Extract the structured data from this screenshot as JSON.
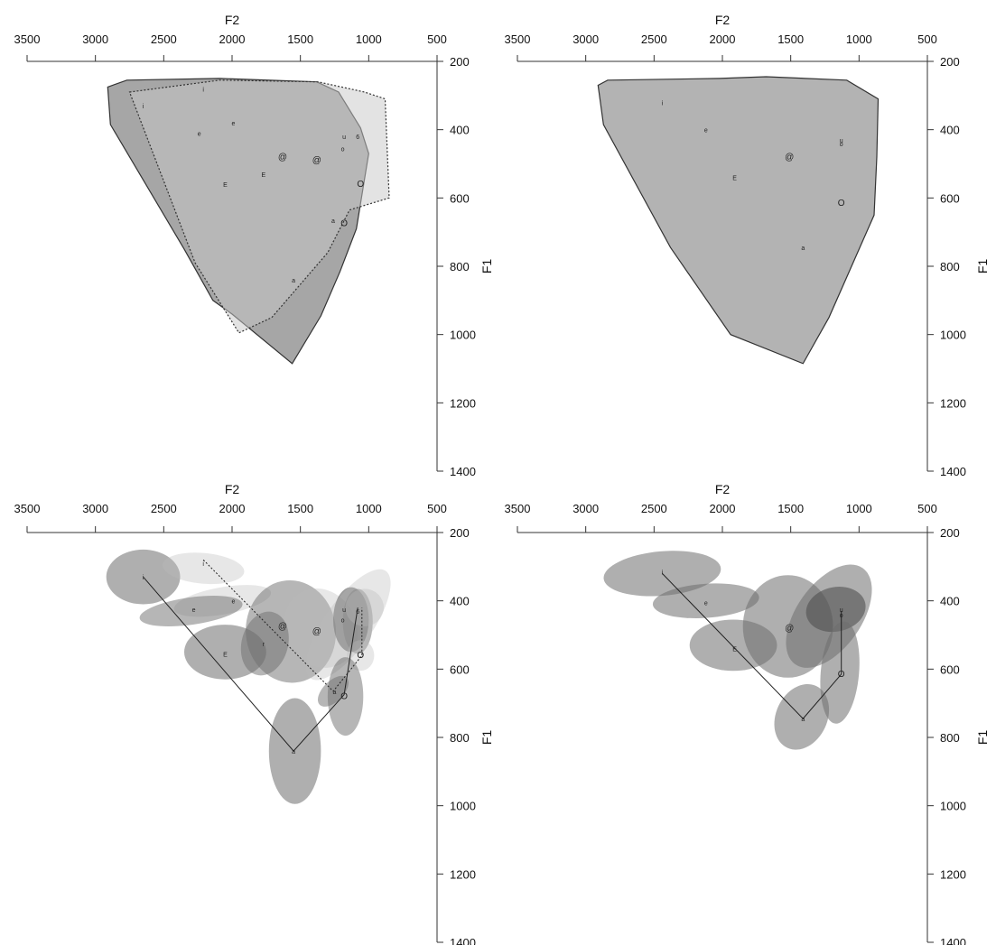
{
  "chart_data": [
    {
      "type": "scatter",
      "xlabel": "F2",
      "ylabel": "F1",
      "xlim": [
        3500,
        500
      ],
      "ylim": [
        200,
        1400
      ],
      "xticks": [
        "3500",
        "3000",
        "2500",
        "2000",
        "1500",
        "1000",
        "500"
      ],
      "yticks": [
        "200",
        "400",
        "600",
        "800",
        "1000",
        "1200",
        "1400"
      ],
      "polygons": [
        {
          "fill": "#a6a6a6",
          "stroke": "#333333",
          "dashed": false,
          "points": [
            [
              2910,
              275
            ],
            [
              2770,
              255
            ],
            [
              2090,
              250
            ],
            [
              1380,
              260
            ],
            [
              1220,
              290
            ],
            [
              1060,
              395
            ],
            [
              1000,
              470
            ],
            [
              1090,
              690
            ],
            [
              1210,
              815
            ],
            [
              1350,
              945
            ],
            [
              1560,
              1085
            ],
            [
              2000,
              940
            ],
            [
              2140,
              900
            ],
            [
              2350,
              750
            ],
            [
              2890,
              385
            ]
          ]
        },
        {
          "fill": "rgba(200,200,200,0.5)",
          "stroke": "#333333",
          "dashed": true,
          "points": [
            [
              2750,
              290
            ],
            [
              2090,
              255
            ],
            [
              1370,
              260
            ],
            [
              1030,
              290
            ],
            [
              880,
              310
            ],
            [
              850,
              600
            ],
            [
              1140,
              635
            ],
            [
              1300,
              760
            ],
            [
              1710,
              950
            ],
            [
              1950,
              995
            ],
            [
              2270,
              790
            ],
            [
              2750,
              290
            ]
          ]
        }
      ],
      "points": [
        {
          "label": "i",
          "f2": 2210,
          "f1": 280
        },
        {
          "label": "i",
          "f2": 2650,
          "f1": 330
        },
        {
          "label": "e",
          "f2": 1990,
          "f1": 380
        },
        {
          "label": "e",
          "f2": 2240,
          "f1": 410
        },
        {
          "label": "u",
          "f2": 1180,
          "f1": 420
        },
        {
          "label": "o",
          "f2": 1190,
          "f1": 455
        },
        {
          "label": "6",
          "f2": 1080,
          "f1": 420
        },
        {
          "label": "@",
          "f2": 1630,
          "f1": 480
        },
        {
          "label": "@",
          "f2": 1380,
          "f1": 490
        },
        {
          "label": "E",
          "f2": 1770,
          "f1": 530
        },
        {
          "label": "E",
          "f2": 2050,
          "f1": 560
        },
        {
          "label": "O",
          "f2": 1060,
          "f1": 560
        },
        {
          "label": "a",
          "f2": 1260,
          "f1": 665
        },
        {
          "label": "O",
          "f2": 1180,
          "f1": 675
        },
        {
          "label": "a",
          "f2": 1550,
          "f1": 840
        }
      ]
    },
    {
      "type": "scatter",
      "xlabel": "F2",
      "ylabel": "F1",
      "xlim": [
        3500,
        500
      ],
      "ylim": [
        200,
        1400
      ],
      "xticks": [
        "3500",
        "3000",
        "2500",
        "2000",
        "1500",
        "1000",
        "500"
      ],
      "yticks": [
        "200",
        "400",
        "600",
        "800",
        "1000",
        "1200",
        "1400"
      ],
      "polygons": [
        {
          "fill": "#b3b3b3",
          "stroke": "#333333",
          "dashed": false,
          "points": [
            [
              2910,
              270
            ],
            [
              2840,
              255
            ],
            [
              2020,
              250
            ],
            [
              1680,
              245
            ],
            [
              1090,
              255
            ],
            [
              860,
              310
            ],
            [
              870,
              480
            ],
            [
              890,
              650
            ],
            [
              1220,
              950
            ],
            [
              1410,
              1085
            ],
            [
              1940,
              1000
            ],
            [
              2380,
              745
            ],
            [
              2870,
              385
            ]
          ]
        }
      ],
      "points": [
        {
          "label": "i",
          "f2": 2440,
          "f1": 320
        },
        {
          "label": "e",
          "f2": 2120,
          "f1": 400
        },
        {
          "label": "u",
          "f2": 1130,
          "f1": 430
        },
        {
          "label": "o",
          "f2": 1130,
          "f1": 440
        },
        {
          "label": "@",
          "f2": 1510,
          "f1": 480
        },
        {
          "label": "E",
          "f2": 1910,
          "f1": 540
        },
        {
          "label": "O",
          "f2": 1130,
          "f1": 615
        },
        {
          "label": "a",
          "f2": 1410,
          "f1": 745
        }
      ]
    },
    {
      "type": "scatter",
      "xlabel": "F2",
      "ylabel": "F1",
      "xlim": [
        3500,
        500
      ],
      "ylim": [
        200,
        1400
      ],
      "xticks": [
        "3500",
        "3000",
        "2500",
        "2000",
        "1500",
        "1000",
        "500"
      ],
      "yticks": [
        "200",
        "400",
        "600",
        "800",
        "1000",
        "1200",
        "1400"
      ],
      "ellipses": [
        {
          "f2": 2650,
          "f1": 330,
          "sd_f2": 270,
          "sd_f1": 80,
          "angle": 0,
          "fill": "rgba(110,110,110,0.55)"
        },
        {
          "f2": 2210,
          "f1": 305,
          "sd_f2": 300,
          "sd_f1": 45,
          "angle": 5,
          "fill": "rgba(185,185,185,0.35)"
        },
        {
          "f2": 2070,
          "f1": 400,
          "sd_f2": 360,
          "sd_f1": 40,
          "angle": -10,
          "fill": "rgba(185,185,185,0.35)"
        },
        {
          "f2": 2300,
          "f1": 430,
          "sd_f2": 380,
          "sd_f1": 40,
          "angle": -8,
          "fill": "rgba(110,110,110,0.5)"
        },
        {
          "f2": 1570,
          "f1": 490,
          "sd_f2": 330,
          "sd_f1": 150,
          "angle": -5,
          "fill": "rgba(110,110,110,0.5)"
        },
        {
          "f2": 1350,
          "f1": 480,
          "sd_f2": 260,
          "sd_f1": 120,
          "angle": -30,
          "fill": "rgba(185,185,185,0.35)"
        },
        {
          "f2": 1130,
          "f1": 455,
          "sd_f2": 130,
          "sd_f1": 95,
          "angle": 0,
          "fill": "rgba(90,90,90,0.6)"
        },
        {
          "f2": 1080,
          "f1": 460,
          "sd_f2": 110,
          "sd_f1": 95,
          "angle": 0,
          "fill": "rgba(110,110,110,0.5)"
        },
        {
          "f2": 1030,
          "f1": 420,
          "sd_f2": 140,
          "sd_f1": 55,
          "angle": -10,
          "fill": "rgba(185,185,185,0.35)"
        },
        {
          "f2": 1150,
          "f1": 470,
          "sd_f2": 480,
          "sd_f1": 70,
          "angle": -55,
          "fill": "rgba(185,185,185,0.35)"
        },
        {
          "f2": 1760,
          "f1": 525,
          "sd_f2": 170,
          "sd_f1": 95,
          "angle": 15,
          "fill": "rgba(110,110,110,0.5)"
        },
        {
          "f2": 2050,
          "f1": 550,
          "sd_f2": 300,
          "sd_f1": 80,
          "angle": 0,
          "fill": "rgba(110,110,110,0.55)"
        },
        {
          "f2": 1060,
          "f1": 560,
          "sd_f2": 100,
          "sd_f1": 45,
          "angle": 0,
          "fill": "rgba(185,185,185,0.35)"
        },
        {
          "f2": 1260,
          "f1": 665,
          "sd_f2": 140,
          "sd_f1": 30,
          "angle": -45,
          "fill": "rgba(110,110,110,0.5)"
        },
        {
          "f2": 1170,
          "f1": 680,
          "sd_f2": 130,
          "sd_f1": 115,
          "angle": 0,
          "fill": "rgba(110,110,110,0.5)"
        },
        {
          "f2": 1540,
          "f1": 840,
          "sd_f2": 190,
          "sd_f1": 155,
          "angle": 0,
          "fill": "rgba(110,110,110,0.55)"
        }
      ],
      "triangles": [
        {
          "dashed": false,
          "points": [
            [
              2650,
              330
            ],
            [
              1550,
              840
            ],
            [
              1180,
              675
            ],
            [
              1080,
              420
            ]
          ]
        },
        {
          "dashed": true,
          "points": [
            [
              2210,
              280
            ],
            [
              1260,
              665
            ],
            [
              1050,
              560
            ],
            [
              1050,
              420
            ]
          ]
        }
      ],
      "points": [
        {
          "label": "i",
          "f2": 2650,
          "f1": 330
        },
        {
          "label": "i",
          "f2": 2210,
          "f1": 290
        },
        {
          "label": "e",
          "f2": 1990,
          "f1": 400
        },
        {
          "label": "e",
          "f2": 2280,
          "f1": 425
        },
        {
          "label": "u",
          "f2": 1180,
          "f1": 425
        },
        {
          "label": "o",
          "f2": 1190,
          "f1": 455
        },
        {
          "label": "6",
          "f2": 1080,
          "f1": 430
        },
        {
          "label": "@",
          "f2": 1630,
          "f1": 475
        },
        {
          "label": "@",
          "f2": 1380,
          "f1": 490
        },
        {
          "label": "r",
          "f2": 1770,
          "f1": 525
        },
        {
          "label": "E",
          "f2": 2050,
          "f1": 555
        },
        {
          "label": "O",
          "f2": 1060,
          "f1": 560
        },
        {
          "label": "a",
          "f2": 1250,
          "f1": 665
        },
        {
          "label": "O",
          "f2": 1180,
          "f1": 680
        },
        {
          "label": "a",
          "f2": 1550,
          "f1": 840
        }
      ]
    },
    {
      "type": "scatter",
      "xlabel": "F2",
      "ylabel": "F1",
      "xlim": [
        3500,
        500
      ],
      "ylim": [
        200,
        1400
      ],
      "xticks": [
        "3500",
        "3000",
        "2500",
        "2000",
        "1500",
        "1000",
        "500"
      ],
      "yticks": [
        "200",
        "400",
        "600",
        "800",
        "1000",
        "1200",
        "1400"
      ],
      "ellipses": [
        {
          "f2": 2440,
          "f1": 320,
          "sd_f2": 430,
          "sd_f1": 65,
          "angle": -5,
          "fill": "rgba(110,110,110,0.55)"
        },
        {
          "f2": 2120,
          "f1": 400,
          "sd_f2": 390,
          "sd_f1": 50,
          "angle": -4,
          "fill": "rgba(110,110,110,0.55)"
        },
        {
          "f2": 1920,
          "f1": 530,
          "sd_f2": 320,
          "sd_f1": 75,
          "angle": 0,
          "fill": "rgba(110,110,110,0.55)"
        },
        {
          "f2": 1520,
          "f1": 475,
          "sd_f2": 330,
          "sd_f1": 150,
          "angle": 0,
          "fill": "rgba(110,110,110,0.55)"
        },
        {
          "f2": 1220,
          "f1": 445,
          "sd_f2": 430,
          "sd_f1": 95,
          "angle": -55,
          "fill": "rgba(110,110,110,0.55)"
        },
        {
          "f2": 1170,
          "f1": 425,
          "sd_f2": 220,
          "sd_f1": 65,
          "angle": -12,
          "fill": "rgba(80,80,80,0.6)"
        },
        {
          "f2": 1140,
          "f1": 610,
          "sd_f2": 140,
          "sd_f1": 150,
          "angle": 5,
          "fill": "rgba(110,110,110,0.55)"
        },
        {
          "f2": 1420,
          "f1": 740,
          "sd_f2": 250,
          "sd_f1": 75,
          "angle": -65,
          "fill": "rgba(110,110,110,0.55)"
        }
      ],
      "triangles": [
        {
          "dashed": false,
          "points": [
            [
              2440,
              320
            ],
            [
              1410,
              745
            ],
            [
              1130,
              615
            ],
            [
              1130,
              430
            ]
          ]
        }
      ],
      "points": [
        {
          "label": "i",
          "f2": 2440,
          "f1": 315
        },
        {
          "label": "e",
          "f2": 2120,
          "f1": 405
        },
        {
          "label": "u",
          "f2": 1130,
          "f1": 425
        },
        {
          "label": "o",
          "f2": 1130,
          "f1": 440
        },
        {
          "label": "@",
          "f2": 1510,
          "f1": 480
        },
        {
          "label": "E",
          "f2": 1910,
          "f1": 540
        },
        {
          "label": "O",
          "f2": 1130,
          "f1": 615
        },
        {
          "label": "a",
          "f2": 1410,
          "f1": 745
        }
      ]
    }
  ]
}
